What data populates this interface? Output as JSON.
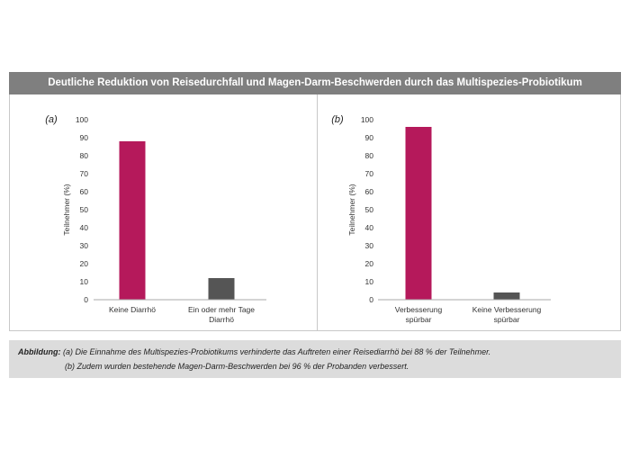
{
  "title": "Deutliche Reduktion von Reisedurchfall und Magen-Darm-Beschwerden durch das Multispezies-Probiotikum",
  "caption": {
    "label": "Abbildung:",
    "line1": "(a) Die Einnahme des Multispezies-Probiotikums verhinderte das Auftreten einer Reisediarrhö bei 88 % der Teilnehmer.",
    "line2": "(b) Zudem wurden bestehende Magen-Darm-Beschwerden bei 96 % der Probanden verbessert."
  },
  "colors": {
    "accent": "#b5195b",
    "secondary": "#555555",
    "header": "#7f7f7f"
  },
  "chart_data": [
    {
      "type": "bar",
      "panel_label": "(a)",
      "ylabel": "Teilnehmer (%)",
      "ylim": [
        0,
        100
      ],
      "yticks": [
        0,
        10,
        20,
        30,
        40,
        50,
        60,
        70,
        80,
        90,
        100
      ],
      "categories": [
        [
          "Keine Diarrhö"
        ],
        [
          "Ein oder mehr Tage",
          "Diarrhö"
        ]
      ],
      "values": [
        88,
        12
      ],
      "bar_colors": [
        "#b5195b",
        "#555555"
      ],
      "grid": false
    },
    {
      "type": "bar",
      "panel_label": "(b)",
      "ylabel": "Teilnehmer (%)",
      "ylim": [
        0,
        100
      ],
      "yticks": [
        0,
        10,
        20,
        30,
        40,
        50,
        60,
        70,
        80,
        90,
        100
      ],
      "categories": [
        [
          "Verbesserung",
          "spürbar"
        ],
        [
          "Keine Verbesserung",
          "spürbar"
        ]
      ],
      "values": [
        96,
        4
      ],
      "bar_colors": [
        "#b5195b",
        "#555555"
      ],
      "grid": false
    }
  ]
}
